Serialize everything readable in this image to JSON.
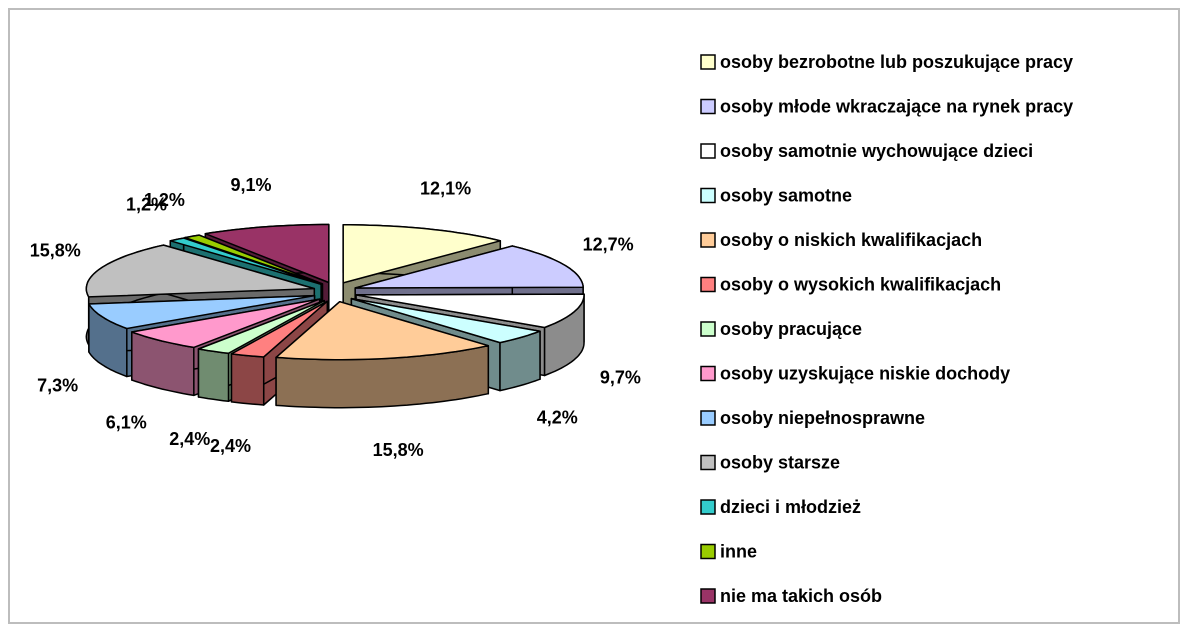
{
  "chart_data": {
    "type": "pie3d",
    "categories": [
      "osoby bezrobotne lub poszukujące pracy",
      "osoby młode wkraczające na rynek pracy",
      "osoby samotnie wychowujące dzieci",
      "osoby samotne",
      "osoby o niskich kwalifikacjach",
      "osoby o wysokich kwalifikacjach",
      "osoby pracujące",
      "osoby uzyskujące niskie dochody",
      "osoby niepełnosprawne",
      "osoby starsze",
      "dzieci i młodzież",
      "inne",
      "nie ma takich osób"
    ],
    "values": [
      12.1,
      12.7,
      9.7,
      4.2,
      15.8,
      2.4,
      2.4,
      6.1,
      7.3,
      15.8,
      1.2,
      1.2,
      9.1
    ],
    "value_labels": [
      "12,1%",
      "12,7%",
      "9,7%",
      "4,2%",
      "15,8%",
      "2,4%",
      "2,4%",
      "6,1%",
      "7,3%",
      "15,8%",
      "1,2%",
      "1,2%",
      "9,1%"
    ],
    "colors": [
      "#FFFFCC",
      "#CCCCFF",
      "#FFFFFF",
      "#CCFFFF",
      "#FFCC99",
      "#FF8080",
      "#CCFFCC",
      "#FF99CC",
      "#99CCFF",
      "#C0C0C0",
      "#33CCCC",
      "#99CC00",
      "#993366"
    ],
    "legend": "right"
  }
}
